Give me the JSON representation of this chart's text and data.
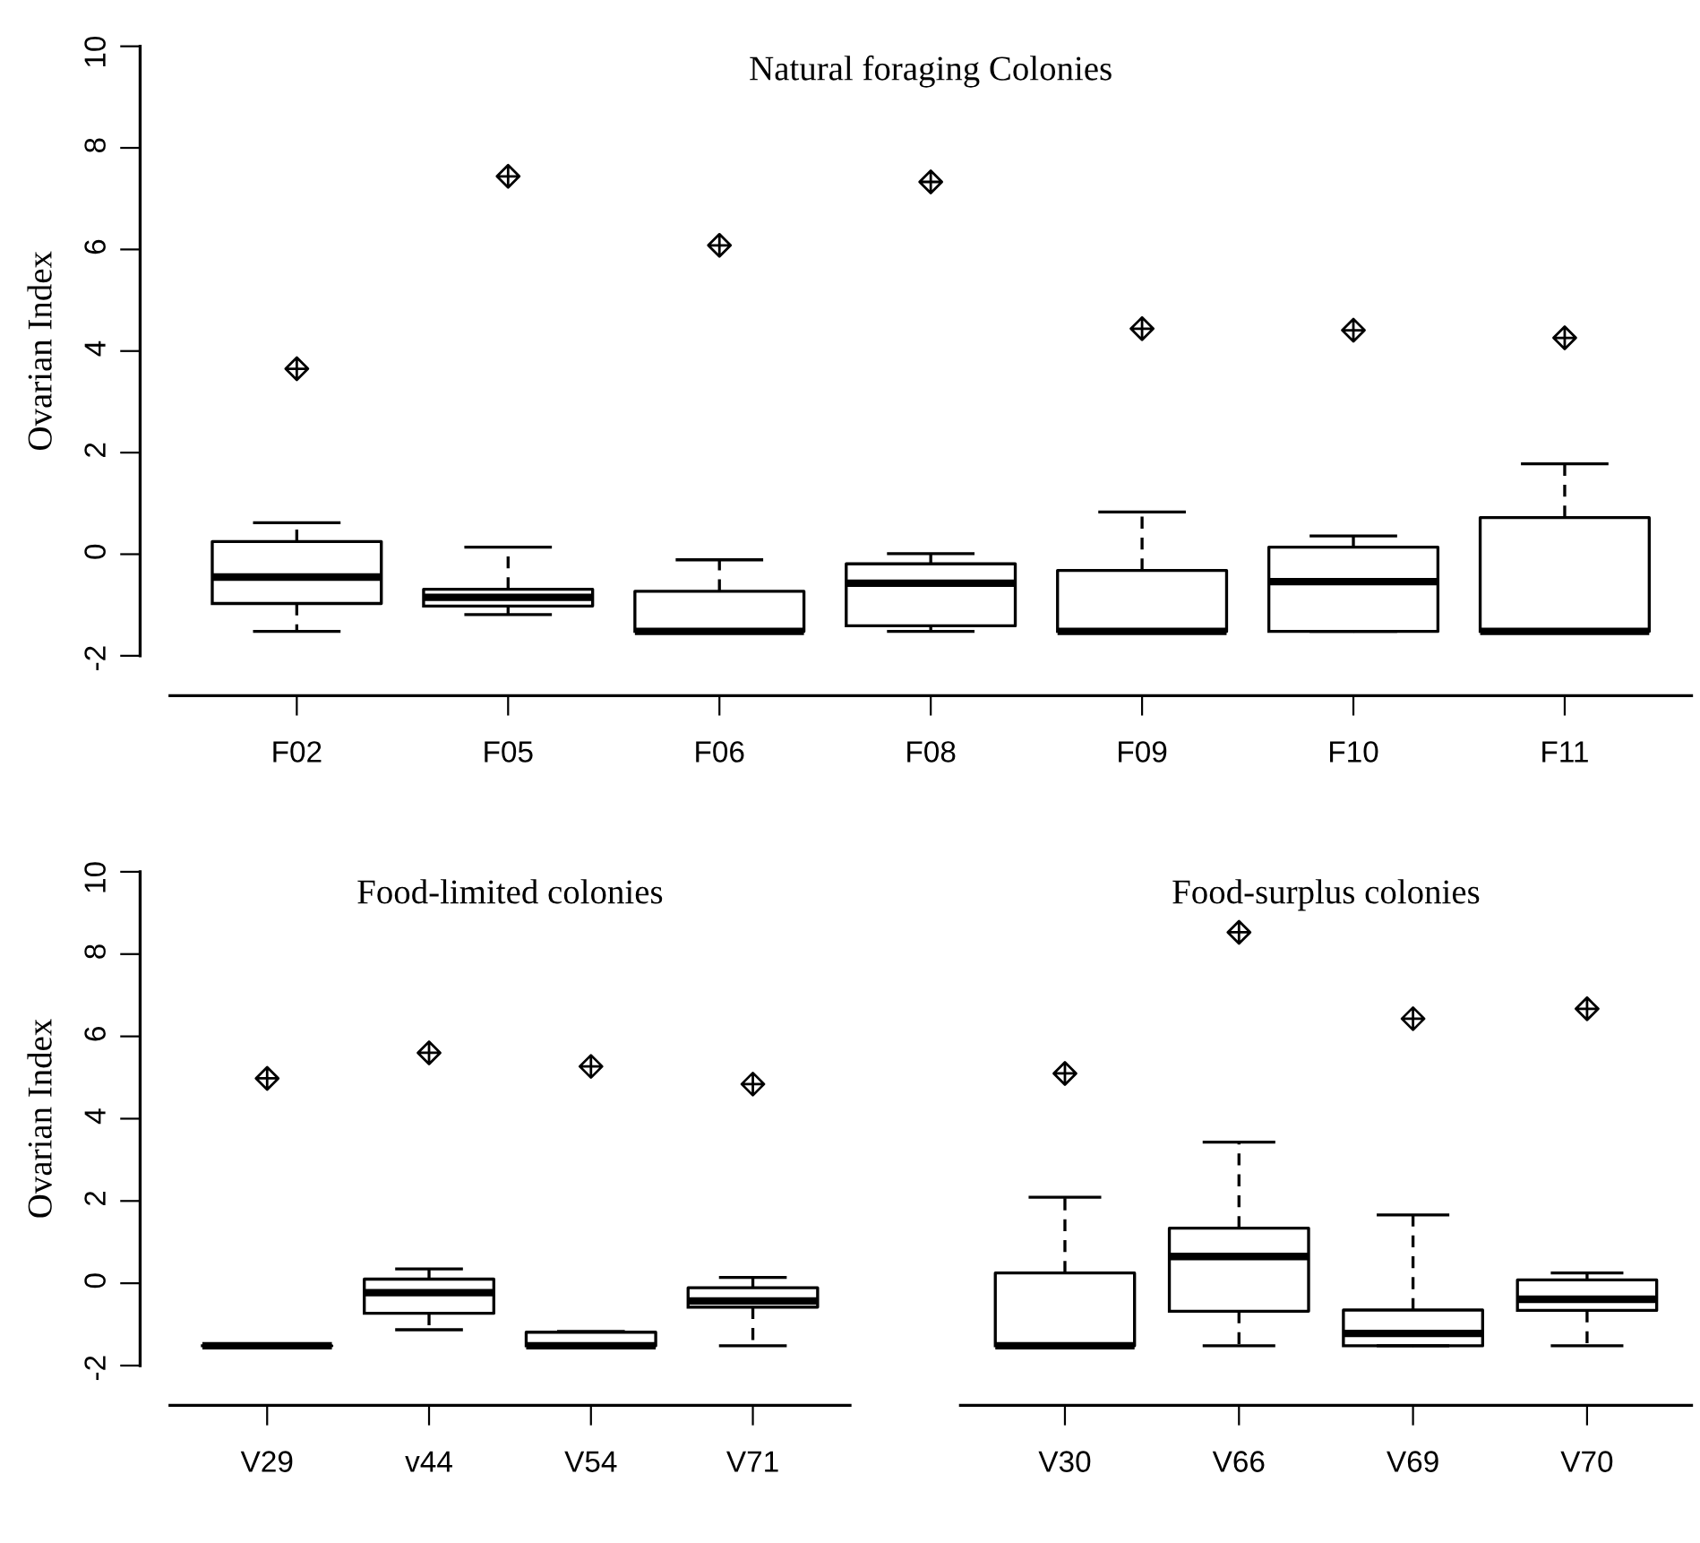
{
  "chart_data": [
    {
      "type": "box",
      "title": "Natural foraging Colonies",
      "ylabel": "Ovarian Index",
      "categories": [
        "F02",
        "F05",
        "F06",
        "F08",
        "F09",
        "F10",
        "F11"
      ],
      "ylim": [
        -2,
        10
      ],
      "yticks": [
        -2,
        0,
        2,
        4,
        6,
        8,
        10
      ],
      "marker": "diamond",
      "boxes": [
        {
          "low": -1.52,
          "q1": -0.97,
          "median": -0.45,
          "q3": 0.25,
          "high": 0.62,
          "outliers": [
            3.65
          ]
        },
        {
          "low": -1.19,
          "q1": -1.02,
          "median": -0.85,
          "q3": -0.69,
          "high": 0.14,
          "outliers": [
            7.44
          ]
        },
        {
          "low": -1.52,
          "q1": -1.52,
          "median": -1.52,
          "q3": -0.73,
          "high": -0.11,
          "outliers": [
            6.08
          ]
        },
        {
          "low": -1.52,
          "q1": -1.41,
          "median": -0.57,
          "q3": -0.19,
          "high": 0.01,
          "outliers": [
            7.33
          ]
        },
        {
          "low": -1.52,
          "q1": -1.52,
          "median": -1.52,
          "q3": -0.32,
          "high": 0.83,
          "outliers": [
            4.44
          ]
        },
        {
          "low": -1.52,
          "q1": -1.52,
          "median": -0.54,
          "q3": 0.14,
          "high": 0.36,
          "outliers": [
            4.41
          ]
        },
        {
          "low": -1.52,
          "q1": -1.52,
          "median": -1.52,
          "q3": 0.72,
          "high": 1.78,
          "outliers": [
            4.26
          ]
        }
      ]
    },
    {
      "type": "box",
      "title": "Food-limited colonies",
      "ylabel": "Ovarian Index",
      "categories": [
        "V29",
        "v44",
        "V54",
        "V71"
      ],
      "ylim": [
        -2,
        10
      ],
      "yticks": [
        -2,
        0,
        2,
        4,
        6,
        8,
        10
      ],
      "marker": "diamond",
      "boxes": [
        {
          "low": -1.52,
          "q1": -1.52,
          "median": -1.52,
          "q3": -1.52,
          "high": -1.52,
          "outliers": [
            4.98
          ]
        },
        {
          "low": -1.13,
          "q1": -0.73,
          "median": -0.23,
          "q3": 0.1,
          "high": 0.35,
          "outliers": [
            5.6
          ]
        },
        {
          "low": -1.52,
          "q1": -1.52,
          "median": -1.52,
          "q3": -1.19,
          "high": -1.17,
          "outliers": [
            5.27
          ]
        },
        {
          "low": -1.52,
          "q1": -0.58,
          "median": -0.43,
          "q3": -0.11,
          "high": 0.14,
          "outliers": [
            4.84
          ]
        }
      ]
    },
    {
      "type": "box",
      "title": "Food-surplus colonies",
      "categories": [
        "V30",
        "V66",
        "V69",
        "V70"
      ],
      "ylim": [
        -2,
        10
      ],
      "yticks": [
        -2,
        0,
        2,
        4,
        6,
        8,
        10
      ],
      "tick_labels": "x",
      "marker": "diamond",
      "boxes": [
        {
          "low": -1.52,
          "q1": -1.52,
          "median": -1.52,
          "q3": 0.25,
          "high": 2.09,
          "outliers": [
            5.1
          ]
        },
        {
          "low": -1.52,
          "q1": -0.68,
          "median": 0.65,
          "q3": 1.34,
          "high": 3.43,
          "outliers": [
            8.53
          ]
        },
        {
          "low": -1.52,
          "q1": -1.52,
          "median": -1.22,
          "q3": -0.65,
          "high": 1.66,
          "outliers": [
            6.43
          ]
        },
        {
          "low": -1.52,
          "q1": -0.66,
          "median": -0.39,
          "q3": 0.08,
          "high": 0.25,
          "outliers": [
            6.67
          ]
        }
      ]
    }
  ]
}
